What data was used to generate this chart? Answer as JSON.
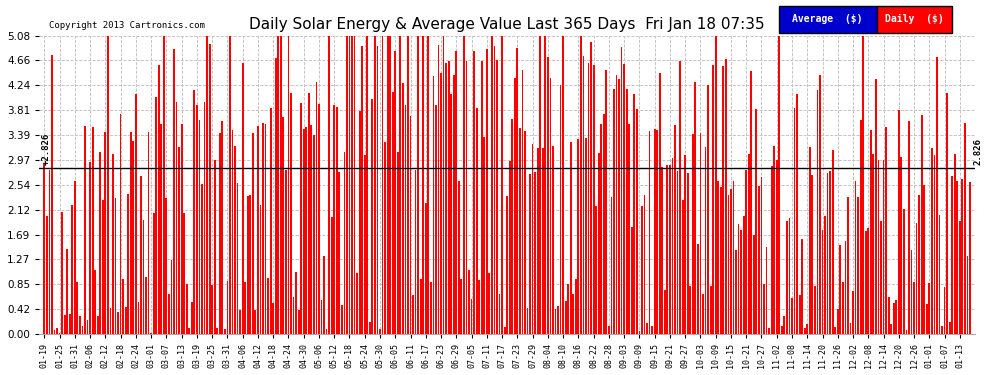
{
  "title": "Daily Solar Energy & Average Value Last 365 Days  Fri Jan 18 07:35",
  "copyright": "Copyright 2013 Cartronics.com",
  "average_value": 2.826,
  "ylim": [
    0.0,
    5.08
  ],
  "yticks": [
    0.0,
    0.42,
    0.85,
    1.27,
    1.69,
    2.12,
    2.54,
    2.97,
    3.39,
    3.81,
    4.24,
    4.66,
    5.08
  ],
  "bar_color": "#FF0000",
  "avg_line_color": "#000000",
  "bg_color": "#FFFFFF",
  "grid_color": "#BBBBBB",
  "legend_avg_bg": "#0000CC",
  "legend_daily_bg": "#CC0000",
  "x_tick_labels": [
    "01-19",
    "01-25",
    "01-31",
    "02-06",
    "02-12",
    "02-18",
    "02-24",
    "03-01",
    "03-07",
    "03-13",
    "03-19",
    "03-25",
    "03-31",
    "04-06",
    "04-12",
    "04-18",
    "04-24",
    "04-30",
    "05-06",
    "05-12",
    "05-18",
    "05-24",
    "05-30",
    "06-05",
    "06-11",
    "06-17",
    "06-23",
    "06-29",
    "07-05",
    "07-11",
    "07-17",
    "07-23",
    "07-29",
    "08-04",
    "08-10",
    "08-16",
    "08-22",
    "08-28",
    "09-03",
    "09-09",
    "09-15",
    "09-21",
    "09-27",
    "10-03",
    "10-09",
    "10-15",
    "10-21",
    "10-27",
    "11-02",
    "11-08",
    "11-14",
    "11-20",
    "11-26",
    "12-02",
    "12-08",
    "12-14",
    "12-20",
    "12-26",
    "01-01",
    "01-07",
    "01-13"
  ],
  "num_bars": 365,
  "seed": 42
}
